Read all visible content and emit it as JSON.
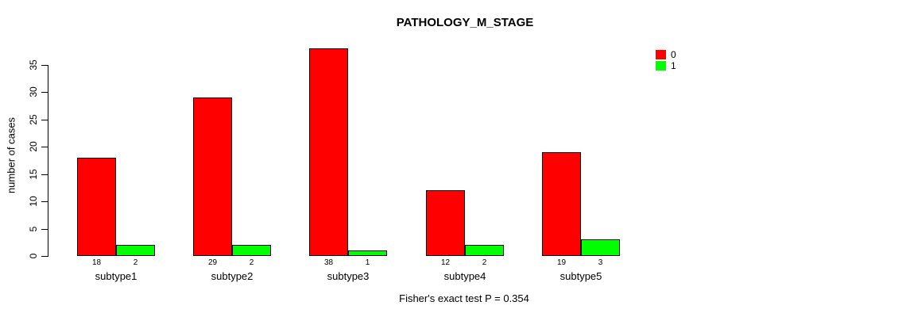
{
  "chart_data": {
    "type": "bar",
    "title": "PATHOLOGY_M_STAGE",
    "xlabel": "",
    "ylabel": "number of cases",
    "categories": [
      "subtype1",
      "subtype2",
      "subtype3",
      "subtype4",
      "subtype5"
    ],
    "series": [
      {
        "name": "0",
        "color": "#ff0000",
        "values": [
          18,
          29,
          38,
          12,
          19
        ]
      },
      {
        "name": "1",
        "color": "#00ff00",
        "values": [
          2,
          2,
          1,
          2,
          3
        ]
      }
    ],
    "bar_value_labels": [
      [
        "18",
        "2"
      ],
      [
        "29",
        "2"
      ],
      [
        "38",
        "1"
      ],
      [
        "12",
        "2"
      ],
      [
        "19",
        "3"
      ]
    ],
    "ylim": [
      0,
      35
    ],
    "yticks": [
      0,
      5,
      10,
      15,
      20,
      25,
      30,
      35
    ],
    "grid": false,
    "legend_position": "top-right",
    "annotation": "Fisher's exact test P = 0.354",
    "background_color": "#ffffff",
    "axis_color": "#000000"
  }
}
